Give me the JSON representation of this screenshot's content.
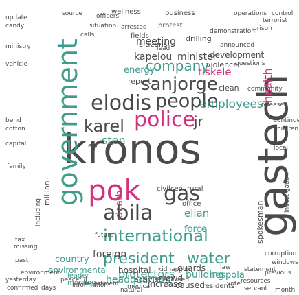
{
  "words": [
    "kronos",
    "gastech",
    "government",
    "pok",
    "police",
    "sanjorge",
    "elodis",
    "people",
    "karel",
    "abila",
    "international",
    "president",
    "water",
    "gas",
    "company",
    "employees",
    "jr",
    "sten",
    "protectors",
    "foreign",
    "country",
    "headquarters",
    "environmental",
    "building",
    "nespola",
    "elian",
    "force",
    "hospital",
    "meeting",
    "minister",
    "kapelou",
    "citizens",
    "energy",
    "tiskele",
    "clean",
    "community",
    "development",
    "announced",
    "violence",
    "questions",
    "drilling",
    "protest",
    "arrested",
    "wellness",
    "fields",
    "report",
    "business",
    "health",
    "death",
    "leader",
    "morning",
    "increase",
    "caused",
    "residents",
    "guards",
    "crowd",
    "activist",
    "office",
    "civil",
    "ceo",
    "rural",
    "spokesman",
    "investigation",
    "children",
    "continue",
    "local",
    "released",
    "control",
    "operations",
    "terrorist",
    "officers",
    "demonstration",
    "prison",
    "situation",
    "source",
    "update",
    "candy",
    "ministry",
    "vehicle",
    "bend",
    "cotton",
    "capital",
    "family",
    "missing",
    "past",
    "environment",
    "information",
    "peaceful",
    "medical",
    "kidnapping",
    "natural",
    "accused",
    "resources",
    "servant",
    "previous",
    "month",
    "statement",
    "windows",
    "corruption",
    "future",
    "aid",
    "tax",
    "law",
    "lead",
    "million",
    "including",
    "yesterday",
    "confirmed",
    "days",
    "department",
    "vote",
    "calls"
  ]
}
